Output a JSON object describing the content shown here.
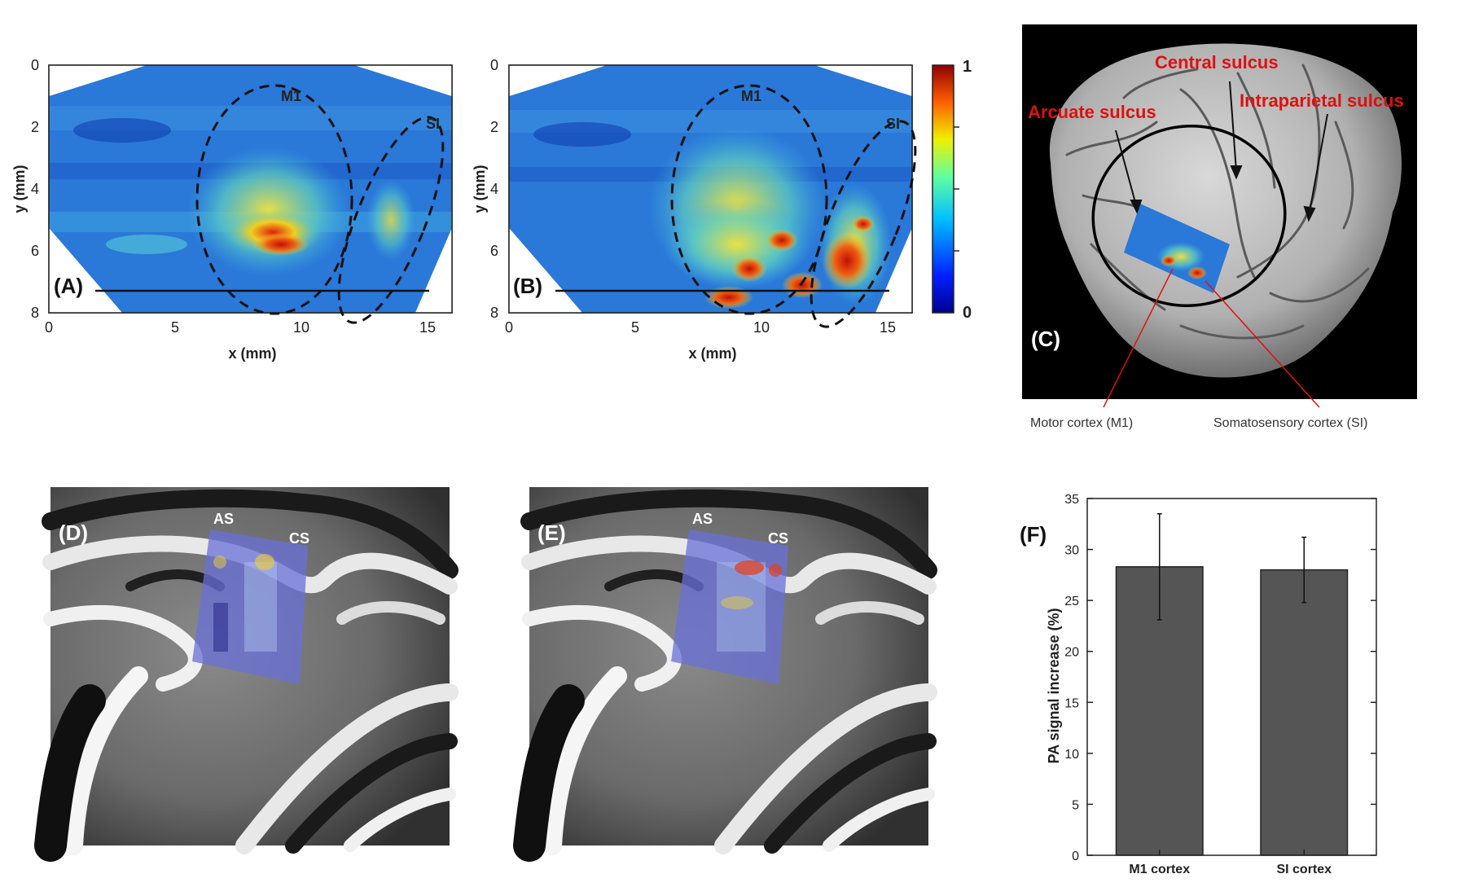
{
  "colors": {
    "heatmap_low": "#1020b0",
    "heatmap_mid": "#30a0e0",
    "heatmap_high": "#e02010",
    "annotation_red": "#e01010",
    "bar_fill": "#555555",
    "brain_bg": "#000000"
  },
  "panels": {
    "a": {
      "tag": "(A)",
      "region_m1": "M1",
      "region_si": "SI",
      "xlabel": "x (mm)",
      "ylabel": "y (mm)",
      "xticks": [
        "0",
        "5",
        "10",
        "15"
      ],
      "yticks": [
        "0",
        "2",
        "4",
        "6",
        "8"
      ]
    },
    "b": {
      "tag": "(B)",
      "region_m1": "M1",
      "region_si": "SI",
      "xlabel": "x (mm)",
      "ylabel": "y (mm)",
      "xticks": [
        "0",
        "5",
        "10",
        "15"
      ],
      "yticks": [
        "0",
        "2",
        "4",
        "6",
        "8"
      ]
    },
    "colorbar": {
      "max_label": "1",
      "min_label": "0"
    },
    "c": {
      "tag": "(C)",
      "label_central": "Central sulcus",
      "label_arcuate": "Arcuate sulcus",
      "label_intraparietal": "Intraparietal sulcus",
      "label_motor": "Motor cortex (M1)",
      "label_somato": "Somatosensory cortex (SI)"
    },
    "d": {
      "tag": "(D)",
      "label_as": "AS",
      "label_cs": "CS"
    },
    "e": {
      "tag": "(E)",
      "label_as": "AS",
      "label_cs": "CS"
    }
  },
  "chart_data": {
    "type": "bar",
    "tag": "(F)",
    "categories": [
      "M1 cortex",
      "SI cortex"
    ],
    "values": [
      28.3,
      28.0
    ],
    "errors": [
      5.2,
      3.2
    ],
    "ylabel": "PA signal increase (%)",
    "xlabel": "",
    "ylim": [
      0,
      35
    ],
    "yticks": [
      0,
      5,
      10,
      15,
      20,
      25,
      30,
      35
    ]
  }
}
